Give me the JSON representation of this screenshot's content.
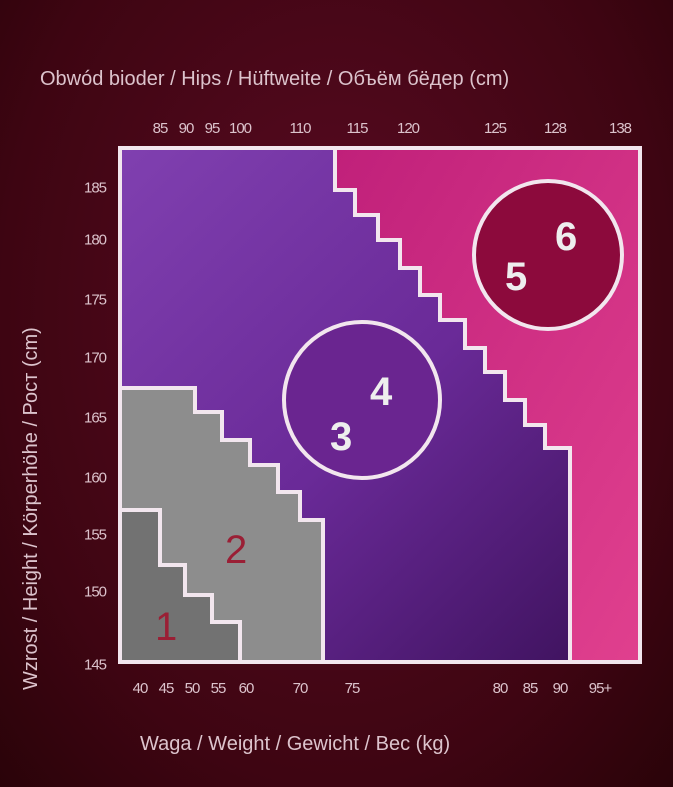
{
  "chart_data": {
    "type": "heatmap",
    "title": "",
    "top_axis_label": "Obwód bioder / Hips / Hüftweite / Объём бёдер (cm)",
    "top_ticks": [
      "85",
      "90",
      "95",
      "100",
      "110",
      "115",
      "120",
      "125",
      "128",
      "138"
    ],
    "xlabel": "Waga / Weight / Gewicht / Вес (kg)",
    "x_ticks": [
      "40",
      "45",
      "50",
      "55",
      "60",
      "70",
      "75",
      "80",
      "85",
      "90",
      "95+"
    ],
    "ylabel": "Wzrost / Height / Körperhöhe / Рост (cm)",
    "y_ticks": [
      "185",
      "180",
      "175",
      "170",
      "165",
      "160",
      "155",
      "150",
      "145"
    ],
    "regions": [
      {
        "label": "1",
        "color": "#6f6f6f"
      },
      {
        "label": "2",
        "color": "#8a8a8a"
      },
      {
        "label": "3",
        "color": "#6a2590"
      },
      {
        "label": "4",
        "color": "#6a2590"
      },
      {
        "label": "5",
        "color": "#8c0a3c"
      },
      {
        "label": "6",
        "color": "#8c0a3c"
      }
    ],
    "colors": {
      "purple": "#7b3aa8",
      "dark_purple": "#3f1560",
      "magenta": "#d02a80",
      "gray": "#8c8c8c",
      "size_label_red": "#9a1f35"
    }
  }
}
